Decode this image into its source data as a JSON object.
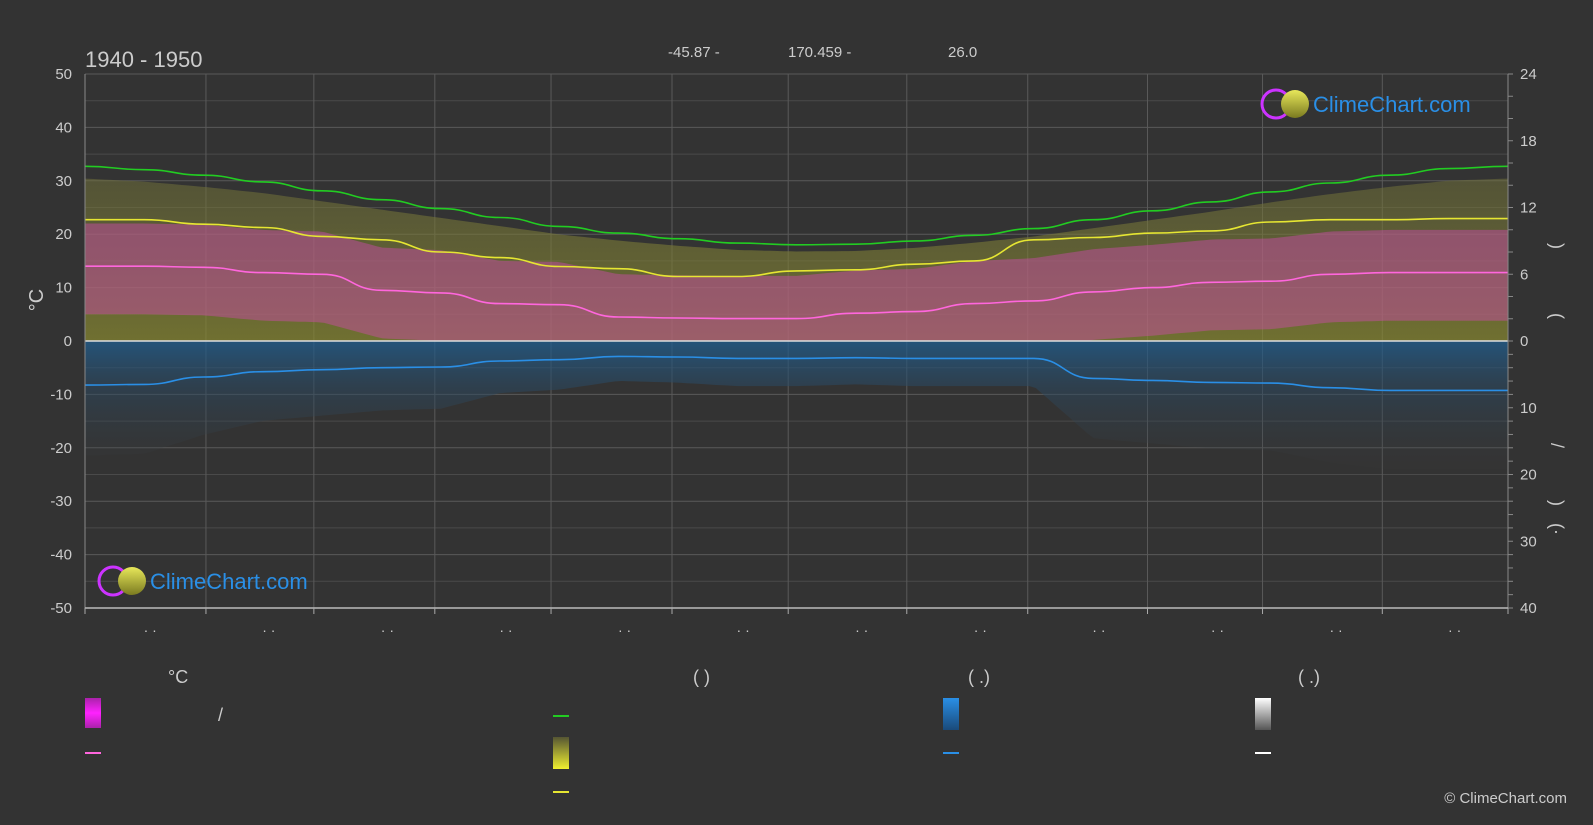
{
  "chart_data": {
    "type": "area",
    "title": "1940 - 1950",
    "header_values": [
      "-45.87 -",
      "170.459 -",
      "26.0"
    ],
    "y_left": {
      "label": "°C",
      "ticks": [
        50,
        40,
        30,
        20,
        10,
        0,
        -10,
        -20,
        -30,
        -40,
        -50
      ],
      "range": [
        -50,
        50
      ]
    },
    "y_right_top": {
      "ticks": [
        24,
        18,
        12,
        6,
        0
      ],
      "range": [
        0,
        24
      ]
    },
    "y_right_bottom": {
      "ticks": [
        0,
        10,
        20,
        30,
        40
      ],
      "range": [
        0,
        40
      ]
    },
    "y_right_label_chars": [
      ")",
      "(",
      "/",
      ")",
      "(·"
    ],
    "x_tick_labels": [
      "· ·",
      "· ·",
      "· ·",
      "· ·",
      "· ·",
      "· ·",
      "· ·",
      "· ·",
      "· ·",
      "· ·",
      "· ·",
      "· ·"
    ],
    "x": [
      0.0,
      0.5,
      1.0,
      1.5,
      2.0,
      2.5,
      3.0,
      3.5,
      4.0,
      4.5,
      5.0,
      5.5,
      6.0,
      6.5,
      7.0,
      7.5,
      8.0,
      8.5,
      9.0,
      9.5,
      10.0,
      10.5,
      11.0,
      11.5,
      12.0
    ],
    "series": [
      {
        "key": "daylight",
        "color": "#22cc22",
        "axis": "right_top",
        "values": [
          15.7,
          15.4,
          14.9,
          14.3,
          13.5,
          12.7,
          11.9,
          11.1,
          10.3,
          9.7,
          9.2,
          8.8,
          8.65,
          8.7,
          9.0,
          9.5,
          10.1,
          10.9,
          11.7,
          12.5,
          13.4,
          14.2,
          14.9,
          15.5,
          15.7
        ]
      },
      {
        "key": "sunshine",
        "color": "#e6e632",
        "axis": "right_top",
        "values": [
          10.9,
          10.9,
          10.5,
          10.2,
          9.4,
          9.1,
          8.0,
          7.5,
          6.7,
          6.5,
          5.8,
          5.8,
          6.3,
          6.4,
          6.9,
          7.2,
          9.1,
          9.3,
          9.7,
          9.9,
          10.7,
          10.9,
          10.9,
          11.0,
          11.0
        ]
      },
      {
        "key": "mean-temperature",
        "color": "#ff66dd",
        "axis": "left",
        "values": [
          14.0,
          14.0,
          13.8,
          12.8,
          12.5,
          9.5,
          9.0,
          7.0,
          6.8,
          4.5,
          4.3,
          4.2,
          4.2,
          5.2,
          5.5,
          7.0,
          7.5,
          9.2,
          10.0,
          11.0,
          11.2,
          12.5,
          12.8,
          12.8,
          12.8
        ]
      },
      {
        "key": "precipitation",
        "color": "#2a8fe6",
        "axis": "right_bottom",
        "values": [
          6.6,
          6.5,
          5.4,
          4.6,
          4.3,
          4.0,
          3.9,
          3.0,
          2.8,
          2.3,
          2.4,
          2.6,
          2.6,
          2.5,
          2.6,
          2.6,
          2.6,
          5.6,
          5.9,
          6.2,
          6.3,
          7.0,
          7.4,
          7.4,
          7.4
        ]
      }
    ]
  },
  "legend": {
    "col1": {
      "title": "°C",
      "row1_text": "/"
    },
    "col2": {
      "title": "(         )"
    },
    "col3": {
      "title": "(   .)"
    },
    "col4": {
      "title": "(   .)"
    }
  },
  "brand": {
    "name": "ClimeChart.com",
    "copyright": "© ClimeChart.com"
  },
  "colors": {
    "background": "#333333",
    "daylight": "#22cc22",
    "sunshine": "#e6e632",
    "temperature": "#ff66dd",
    "precipitation": "#2a8fe6",
    "snow": "#ffffff",
    "brand": "#2a8fe6"
  }
}
